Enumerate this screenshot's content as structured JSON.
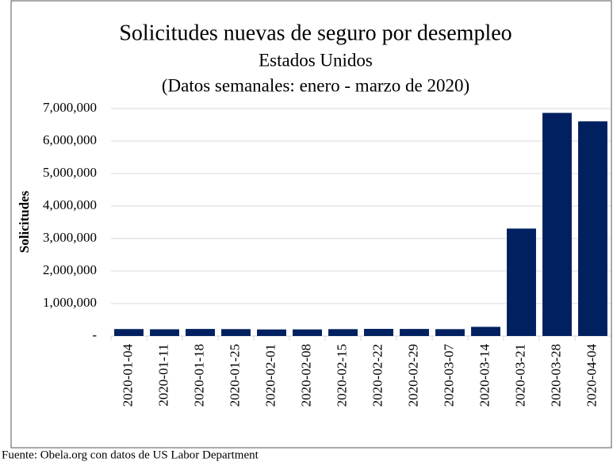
{
  "chart_data": {
    "type": "bar",
    "title": "Solicitudes nuevas de seguro por desempleo",
    "subtitle": "Estados Unidos",
    "subtitle2": "(Datos semanales:  enero - marzo de 2020)",
    "y_label": "Solicitudes",
    "source": "Fuente: Obela.org con datos de US Labor Department",
    "categories": [
      "2020-01-04",
      "2020-01-11",
      "2020-01-18",
      "2020-01-25",
      "2020-02-01",
      "2020-02-08",
      "2020-02-15",
      "2020-02-22",
      "2020-02-29",
      "2020-03-07",
      "2020-03-14",
      "2020-03-21",
      "2020-03-28",
      "2020-04-04"
    ],
    "values": [
      214000,
      207000,
      217000,
      212000,
      202000,
      203000,
      211000,
      219000,
      217000,
      211000,
      282000,
      3307000,
      6867000,
      6606000
    ],
    "color": "#002060",
    "ylim": [
      0,
      7000000
    ],
    "yticks": [
      {
        "value": 0,
        "label": "-"
      },
      {
        "value": 1000000,
        "label": "1,000,000"
      },
      {
        "value": 2000000,
        "label": "2,000,000"
      },
      {
        "value": 3000000,
        "label": "3,000,000"
      },
      {
        "value": 4000000,
        "label": "4,000,000"
      },
      {
        "value": 5000000,
        "label": "5,000,000"
      },
      {
        "value": 6000000,
        "label": "6,000,000"
      },
      {
        "value": 7000000,
        "label": "7,000,000"
      }
    ],
    "grid": true
  }
}
